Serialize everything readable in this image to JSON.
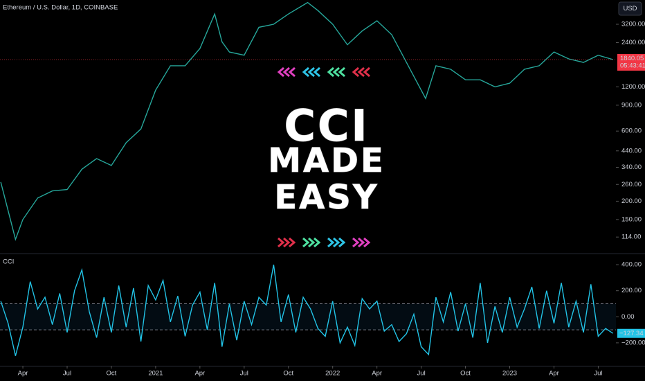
{
  "header": {
    "title": "Ethereum / U.S. Dollar, 1D, COINBASE",
    "currency": "USD"
  },
  "overlay": {
    "line1": "CCI",
    "line2": "MADE",
    "line3": "EASY"
  },
  "chart_data": [
    {
      "type": "line",
      "color": "#26a69a",
      "log_y": true,
      "x": [
        1.5,
        2.5,
        3,
        4,
        5,
        6,
        7,
        8,
        9,
        10,
        11,
        12,
        13,
        14,
        15,
        16,
        16.5,
        17,
        18,
        19,
        20,
        21,
        22.3,
        23,
        24,
        25,
        26,
        27,
        28,
        29,
        30,
        30.3,
        31,
        32,
        33,
        34,
        35,
        36,
        37,
        38,
        39,
        40,
        41,
        42,
        43
      ],
      "values": [
        270,
        110,
        150,
        210,
        235,
        240,
        330,
        390,
        350,
        500,
        620,
        1140,
        1670,
        1670,
        2190,
        3760,
        2430,
        2070,
        1970,
        3050,
        3200,
        3760,
        4500,
        3970,
        3200,
        2320,
        2880,
        3380,
        2720,
        1760,
        1140,
        1000,
        1670,
        1580,
        1340,
        1340,
        1200,
        1270,
        1580,
        1670,
        2070,
        1860,
        1760,
        1970,
        1840.05
      ],
      "xlim": [
        1.45,
        43.2
      ],
      "ylim": [
        89,
        4680
      ],
      "yticks": [
        {
          "value": 3200,
          "label": "3200.00"
        },
        {
          "value": 2400,
          "label": "2400.00"
        },
        {
          "value": 1200,
          "label": "1200.00"
        },
        {
          "value": 900,
          "label": "900.00"
        },
        {
          "value": 600,
          "label": "600.00"
        },
        {
          "value": 440,
          "label": "440.00"
        },
        {
          "value": 340,
          "label": "340.00"
        },
        {
          "value": 260,
          "label": "260.00"
        },
        {
          "value": 200,
          "label": "200.00"
        },
        {
          "value": 150,
          "label": "150.00"
        },
        {
          "value": 114,
          "label": "114.00"
        }
      ],
      "last_price": 1840.05,
      "countdown": "05:43:41",
      "last_color": "#f23645"
    },
    {
      "type": "line",
      "title": "CCI",
      "color": "#22c3e6",
      "x": [
        1.5,
        2,
        2.5,
        3,
        3.5,
        4,
        4.5,
        5,
        5.5,
        6,
        6.5,
        7,
        7.5,
        8,
        8.5,
        9,
        9.5,
        10,
        10.5,
        11,
        11.5,
        12,
        12.5,
        13,
        13.5,
        14,
        14.5,
        15,
        15.5,
        16,
        16.5,
        17,
        17.5,
        18,
        18.5,
        19,
        19.5,
        20,
        20.5,
        21,
        21.5,
        22,
        22.5,
        23,
        23.5,
        24,
        24.5,
        25,
        25.5,
        26,
        26.5,
        27,
        27.5,
        28,
        28.5,
        29,
        29.5,
        30,
        30.5,
        31,
        31.5,
        32,
        32.5,
        33,
        33.5,
        34,
        34.5,
        35,
        35.5,
        36,
        36.5,
        37,
        37.5,
        38,
        38.5,
        39,
        39.5,
        40,
        40.5,
        41,
        41.5,
        42,
        42.5,
        43
      ],
      "values": [
        120,
        -50,
        -300,
        -80,
        270,
        60,
        150,
        -60,
        180,
        -120,
        200,
        360,
        40,
        -160,
        150,
        -120,
        240,
        -80,
        220,
        -190,
        240,
        130,
        280,
        -40,
        160,
        -150,
        90,
        190,
        -100,
        260,
        -230,
        100,
        -180,
        120,
        -60,
        150,
        90,
        400,
        -40,
        170,
        -120,
        150,
        60,
        -90,
        -150,
        120,
        -200,
        -80,
        -220,
        140,
        60,
        120,
        -110,
        -60,
        -190,
        -130,
        20,
        -230,
        -290,
        150,
        -40,
        190,
        -110,
        100,
        -160,
        260,
        -200,
        80,
        -120,
        150,
        -80,
        60,
        230,
        -90,
        200,
        -50,
        260,
        -80,
        120,
        -120,
        250,
        -150,
        -90,
        -127.34
      ],
      "xlim": [
        1.45,
        43.2
      ],
      "ylim": [
        -376,
        475
      ],
      "band": [
        -100,
        100
      ],
      "yticks": [
        {
          "value": 400,
          "label": "400.00"
        },
        {
          "value": 200,
          "label": "200.00"
        },
        {
          "value": 0,
          "label": "0.00"
        },
        {
          "value": -200,
          "label": "−200.00"
        }
      ],
      "xticks": [
        {
          "value": 3,
          "label": "Apr"
        },
        {
          "value": 6,
          "label": "Jul"
        },
        {
          "value": 9,
          "label": "Oct"
        },
        {
          "value": 12,
          "label": "2021"
        },
        {
          "value": 15,
          "label": "Apr"
        },
        {
          "value": 18,
          "label": "Jul"
        },
        {
          "value": 21,
          "label": "Oct"
        },
        {
          "value": 24,
          "label": "2022"
        },
        {
          "value": 27,
          "label": "Apr"
        },
        {
          "value": 30,
          "label": "Jul"
        },
        {
          "value": 33,
          "label": "Oct"
        },
        {
          "value": 36,
          "label": "2023"
        },
        {
          "value": 39,
          "label": "Apr"
        },
        {
          "value": 42,
          "label": "Jul"
        }
      ],
      "last_value": {
        "value": -127.34,
        "label": "−127.34"
      }
    }
  ]
}
